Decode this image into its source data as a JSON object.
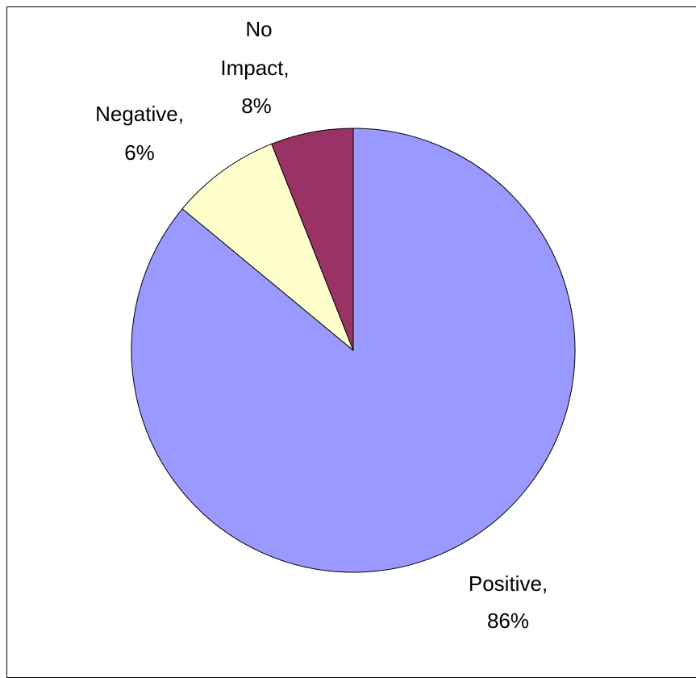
{
  "chart_data": {
    "type": "pie",
    "title": "",
    "slices": [
      {
        "label": "Positive",
        "value": 86,
        "display": "86%",
        "color": "#9999FF"
      },
      {
        "label": "No Impact",
        "value": 8,
        "display": "8%",
        "color": "#FFFFCC"
      },
      {
        "label": "Negative",
        "value": 6,
        "display": "6%",
        "color": "#993366"
      }
    ],
    "start_angle": "12 o'clock",
    "direction": "clockwise",
    "legend": "none",
    "data_labels": "category name and percentage, outside slices"
  }
}
